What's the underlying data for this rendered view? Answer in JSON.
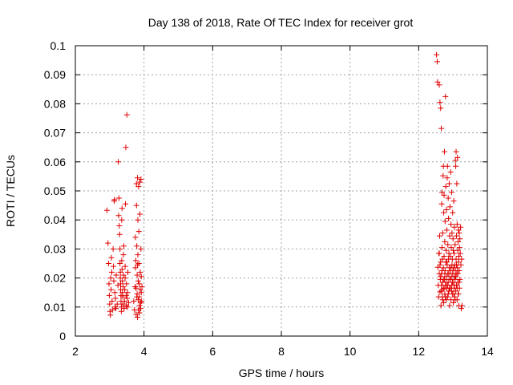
{
  "chart_data": {
    "type": "scatter",
    "title": "Day 138 of 2018, Rate Of TEC Index for receiver grot",
    "xlabel": "GPS time / hours",
    "ylabel": "ROTI / TECUs",
    "xlim": [
      2,
      14
    ],
    "ylim": [
      0,
      0.1
    ],
    "x_ticks": [
      2,
      4,
      6,
      8,
      10,
      12,
      14
    ],
    "x_tick_labels": [
      "2",
      "4",
      "6",
      "8",
      "10",
      "12",
      "14"
    ],
    "y_ticks": [
      0,
      0.01,
      0.02,
      0.03,
      0.04,
      0.05,
      0.06,
      0.07,
      0.08,
      0.09,
      0.1
    ],
    "y_tick_labels": [
      "0",
      "0.01",
      "0.02",
      "0.03",
      "0.04",
      "0.05",
      "0.06",
      "0.07",
      "0.08",
      "0.09",
      "0.1"
    ],
    "grid": true,
    "marker": "+",
    "marker_color": "#e00000",
    "series": [
      {
        "points": [
          [
            2.92,
            0.0433
          ],
          [
            2.95,
            0.032
          ],
          [
            2.97,
            0.025
          ],
          [
            2.98,
            0.018
          ],
          [
            2.99,
            0.014
          ],
          [
            3.0,
            0.011
          ],
          [
            3.01,
            0.0085
          ],
          [
            3.02,
            0.0072
          ],
          [
            3.03,
            0.02
          ],
          [
            3.04,
            0.016
          ],
          [
            3.05,
            0.027
          ],
          [
            3.06,
            0.022
          ],
          [
            3.07,
            0.012
          ],
          [
            3.08,
            0.009
          ],
          [
            3.1,
            0.03
          ],
          [
            3.11,
            0.024
          ],
          [
            3.12,
            0.019
          ],
          [
            3.13,
            0.0465
          ],
          [
            3.14,
            0.047
          ],
          [
            3.15,
            0.015
          ],
          [
            3.16,
            0.01
          ],
          [
            3.17,
            0.013
          ],
          [
            3.18,
            0.0095
          ],
          [
            3.19,
            0.021
          ],
          [
            3.22,
            0.011
          ],
          [
            3.24,
            0.0175
          ],
          [
            3.25,
            0.06
          ],
          [
            3.26,
            0.0415
          ],
          [
            3.27,
            0.0475
          ],
          [
            3.28,
            0.038
          ],
          [
            3.29,
            0.035
          ],
          [
            3.3,
            0.03
          ],
          [
            3.3,
            0.025
          ],
          [
            3.31,
            0.022
          ],
          [
            3.31,
            0.02
          ],
          [
            3.32,
            0.018
          ],
          [
            3.32,
            0.016
          ],
          [
            3.33,
            0.014
          ],
          [
            3.33,
            0.012
          ],
          [
            3.34,
            0.01
          ],
          [
            3.34,
            0.0085
          ],
          [
            3.35,
            0.026
          ],
          [
            3.35,
            0.04
          ],
          [
            3.36,
            0.044
          ],
          [
            3.36,
            0.023
          ],
          [
            3.37,
            0.019
          ],
          [
            3.37,
            0.015
          ],
          [
            3.38,
            0.011
          ],
          [
            3.38,
            0.0135
          ],
          [
            3.39,
            0.017
          ],
          [
            3.4,
            0.021
          ],
          [
            3.4,
            0.028
          ],
          [
            3.41,
            0.031
          ],
          [
            3.42,
            0.0095
          ],
          [
            3.43,
            0.012
          ],
          [
            3.44,
            0.016
          ],
          [
            3.45,
            0.02
          ],
          [
            3.45,
            0.024
          ],
          [
            3.46,
            0.0455
          ],
          [
            3.47,
            0.065
          ],
          [
            3.48,
            0.014
          ],
          [
            3.48,
            0.0105
          ],
          [
            3.49,
            0.018
          ],
          [
            3.5,
            0.0762
          ],
          [
            3.51,
            0.013
          ],
          [
            3.52,
            0.01
          ],
          [
            3.52,
            0.015
          ],
          [
            3.53,
            0.022
          ],
          [
            3.55,
            0.0115
          ],
          [
            3.7,
            0.012
          ],
          [
            3.72,
            0.009
          ],
          [
            3.74,
            0.017
          ],
          [
            3.75,
            0.034
          ],
          [
            3.76,
            0.026
          ],
          [
            3.77,
            0.0075
          ],
          [
            3.78,
            0.0525
          ],
          [
            3.78,
            0.045
          ],
          [
            3.79,
            0.031
          ],
          [
            3.8,
            0.021
          ],
          [
            3.8,
            0.0145
          ],
          [
            3.81,
            0.0065
          ],
          [
            3.81,
            0.0545
          ],
          [
            3.82,
            0.04
          ],
          [
            3.82,
            0.028
          ],
          [
            3.83,
            0.019
          ],
          [
            3.83,
            0.0125
          ],
          [
            3.84,
            0.009
          ],
          [
            3.84,
            0.0515
          ],
          [
            3.85,
            0.036
          ],
          [
            3.85,
            0.025
          ],
          [
            3.86,
            0.018
          ],
          [
            3.86,
            0.0135
          ],
          [
            3.87,
            0.0105
          ],
          [
            3.87,
            0.008
          ],
          [
            3.88,
            0.053
          ],
          [
            3.88,
            0.042
          ],
          [
            3.89,
            0.022
          ],
          [
            3.89,
            0.016
          ],
          [
            3.9,
            0.0115
          ],
          [
            3.9,
            0.0095
          ],
          [
            3.91,
            0.054
          ],
          [
            3.91,
            0.03
          ],
          [
            3.92,
            0.0205
          ],
          [
            3.92,
            0.015
          ],
          [
            3.93,
            0.012
          ],
          [
            3.94,
            0.017
          ],
          [
            3.75,
            0.0235
          ],
          [
            3.77,
            0.0165
          ],
          [
            3.79,
            0.0135
          ],
          [
            3.81,
            0.0245
          ],
          [
            12.52,
            0.0969
          ],
          [
            12.54,
            0.0945
          ],
          [
            12.55,
            0.0875
          ],
          [
            12.56,
            0.0237
          ],
          [
            12.57,
            0.0175
          ],
          [
            12.58,
            0.0135
          ],
          [
            12.59,
            0.0285
          ],
          [
            12.6,
            0.0215
          ],
          [
            12.6,
            0.0865
          ],
          [
            12.61,
            0.0345
          ],
          [
            12.62,
            0.0152
          ],
          [
            12.62,
            0.0805
          ],
          [
            12.63,
            0.0195
          ],
          [
            12.64,
            0.0255
          ],
          [
            12.64,
            0.0785
          ],
          [
            12.65,
            0.0105
          ],
          [
            12.66,
            0.0175
          ],
          [
            12.66,
            0.0715
          ],
          [
            12.67,
            0.0455
          ],
          [
            12.67,
            0.0215
          ],
          [
            12.68,
            0.0495
          ],
          [
            12.68,
            0.0305
          ],
          [
            12.69,
            0.0135
          ],
          [
            12.69,
            0.0265
          ],
          [
            12.7,
            0.0355
          ],
          [
            12.7,
            0.0185
          ],
          [
            12.71,
            0.0552
          ],
          [
            12.71,
            0.0162
          ],
          [
            12.72,
            0.0585
          ],
          [
            12.72,
            0.0235
          ],
          [
            12.73,
            0.0425
          ],
          [
            12.73,
            0.0115
          ],
          [
            12.74,
            0.0485
          ],
          [
            12.74,
            0.0275
          ],
          [
            12.75,
            0.0635
          ],
          [
            12.75,
            0.0195
          ],
          [
            12.76,
            0.0325
          ],
          [
            12.76,
            0.0145
          ],
          [
            12.77,
            0.0395
          ],
          [
            12.77,
            0.0225
          ],
          [
            12.78,
            0.0825
          ],
          [
            12.78,
            0.0175
          ],
          [
            12.79,
            0.0515
          ],
          [
            12.79,
            0.0255
          ],
          [
            12.8,
            0.0295
          ],
          [
            12.8,
            0.0125
          ],
          [
            12.81,
            0.0435
          ],
          [
            12.81,
            0.0205
          ],
          [
            12.82,
            0.0365
          ],
          [
            12.82,
            0.0165
          ],
          [
            12.83,
            0.0545
          ],
          [
            12.83,
            0.0245
          ],
          [
            12.84,
            0.0585
          ],
          [
            12.84,
            0.0135
          ],
          [
            12.85,
            0.0315
          ],
          [
            12.85,
            0.0215
          ],
          [
            12.86,
            0.0475
          ],
          [
            12.86,
            0.0185
          ],
          [
            12.87,
            0.0405
          ],
          [
            12.87,
            0.0265
          ],
          [
            12.88,
            0.0285
          ],
          [
            12.88,
            0.0155
          ],
          [
            12.89,
            0.0525
          ],
          [
            12.89,
            0.0235
          ],
          [
            12.9,
            0.0345
          ],
          [
            12.9,
            0.0105
          ],
          [
            12.91,
            0.0445
          ],
          [
            12.91,
            0.0195
          ],
          [
            12.92,
            0.0275
          ],
          [
            12.92,
            0.0165
          ],
          [
            12.93,
            0.0565
          ],
          [
            12.93,
            0.0225
          ],
          [
            12.94,
            0.0385
          ],
          [
            12.94,
            0.0125
          ],
          [
            12.95,
            0.0305
          ],
          [
            12.95,
            0.0205
          ],
          [
            12.96,
            0.0495
          ],
          [
            12.96,
            0.0175
          ],
          [
            12.97,
            0.0355
          ],
          [
            12.97,
            0.0245
          ],
          [
            12.98,
            0.0265
          ],
          [
            12.98,
            0.0145
          ],
          [
            12.99,
            0.0425
          ],
          [
            12.99,
            0.0215
          ],
          [
            13.0,
            0.0335
          ],
          [
            13.0,
            0.0185
          ],
          [
            13.01,
            0.0295
          ],
          [
            13.01,
            0.0115
          ],
          [
            13.02,
            0.0465
          ],
          [
            13.02,
            0.0235
          ],
          [
            13.03,
            0.0285
          ],
          [
            13.03,
            0.0165
          ],
          [
            13.04,
            0.0375
          ],
          [
            13.04,
            0.0205
          ],
          [
            13.05,
            0.0245
          ],
          [
            13.05,
            0.0135
          ],
          [
            13.06,
            0.0315
          ],
          [
            13.06,
            0.0195
          ],
          [
            13.07,
            0.0605
          ],
          [
            13.07,
            0.0225
          ],
          [
            13.08,
            0.0585
          ],
          [
            13.08,
            0.0155
          ],
          [
            13.09,
            0.0635
          ],
          [
            13.09,
            0.0265
          ],
          [
            13.1,
            0.0345
          ],
          [
            13.1,
            0.0175
          ],
          [
            13.11,
            0.0525
          ],
          [
            13.11,
            0.0215
          ],
          [
            13.12,
            0.0385
          ],
          [
            13.12,
            0.0125
          ],
          [
            13.13,
            0.0615
          ],
          [
            13.13,
            0.0235
          ],
          [
            13.14,
            0.0295
          ],
          [
            13.14,
            0.0185
          ],
          [
            13.15,
            0.0325
          ],
          [
            13.15,
            0.0145
          ],
          [
            13.16,
            0.0365
          ],
          [
            13.16,
            0.0255
          ],
          [
            13.17,
            0.0275
          ],
          [
            13.17,
            0.0105
          ],
          [
            13.18,
            0.0355
          ],
          [
            13.18,
            0.0225
          ],
          [
            13.19,
            0.0305
          ],
          [
            13.19,
            0.0165
          ],
          [
            13.2,
            0.0335
          ],
          [
            13.2,
            0.0195
          ],
          [
            13.21,
            0.0285
          ],
          [
            13.22,
            0.0375
          ],
          [
            13.23,
            0.0245
          ],
          [
            13.24,
            0.0095
          ],
          [
            13.25,
            0.0265
          ],
          [
            13.26,
            0.0105
          ],
          [
            12.6,
            0.0285
          ],
          [
            12.62,
            0.0245
          ],
          [
            12.64,
            0.0205
          ],
          [
            12.66,
            0.0155
          ],
          [
            12.68,
            0.0225
          ],
          [
            12.7,
            0.0125
          ],
          [
            12.72,
            0.0195
          ],
          [
            12.74,
            0.0165
          ],
          [
            12.76,
            0.0215
          ],
          [
            12.78,
            0.0135
          ],
          [
            12.8,
            0.0185
          ],
          [
            12.82,
            0.0255
          ],
          [
            12.84,
            0.0175
          ],
          [
            12.86,
            0.0145
          ],
          [
            12.88,
            0.0215
          ],
          [
            12.9,
            0.0165
          ],
          [
            12.92,
            0.0195
          ],
          [
            12.94,
            0.0235
          ],
          [
            12.96,
            0.0155
          ],
          [
            12.98,
            0.0185
          ],
          [
            13.0,
            0.0225
          ],
          [
            13.02,
            0.0145
          ],
          [
            13.04,
            0.0175
          ],
          [
            13.06,
            0.0125
          ],
          [
            13.08,
            0.0205
          ],
          [
            13.1,
            0.0245
          ],
          [
            13.12,
            0.0165
          ],
          [
            13.14,
            0.0215
          ],
          [
            13.16,
            0.0145
          ],
          [
            13.18,
            0.0185
          ]
        ]
      }
    ]
  }
}
